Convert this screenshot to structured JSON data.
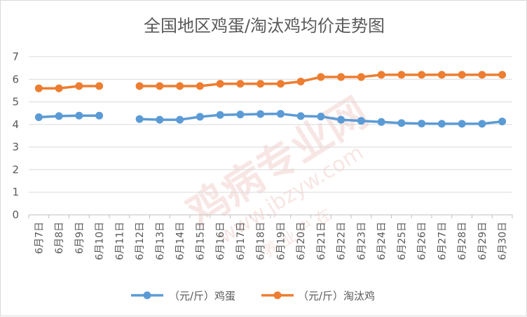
{
  "chart_data": {
    "type": "line",
    "title": "全国地区鸡蛋/淘汰鸡均价走势图",
    "categories": [
      "6月7日",
      "6月8日",
      "6月9日",
      "6月10日",
      "6月11日",
      "6月12日",
      "6月13日",
      "6月14日",
      "6月15日",
      "6月16日",
      "6月17日",
      "6月18日",
      "6月19日",
      "6月20日",
      "6月21日",
      "6月22日",
      "6月23日",
      "6月24日",
      "6月25日",
      "6月26日",
      "6月27日",
      "6月28日",
      "6月29日",
      "6月30日"
    ],
    "series": [
      {
        "name": "（元/斤）鸡蛋",
        "color": "#5b9bd5",
        "values": [
          4.32,
          4.37,
          4.39,
          4.39,
          null,
          4.24,
          4.21,
          4.21,
          4.34,
          4.42,
          4.44,
          4.46,
          4.47,
          4.37,
          4.35,
          4.21,
          4.16,
          4.11,
          4.06,
          4.04,
          4.03,
          4.03,
          4.03,
          4.13
        ]
      },
      {
        "name": "（元/斤）淘汰鸡",
        "color": "#ed7d31",
        "values": [
          5.6,
          5.6,
          5.7,
          5.7,
          null,
          5.7,
          5.7,
          5.7,
          5.7,
          5.8,
          5.8,
          5.8,
          5.8,
          5.9,
          6.1,
          6.1,
          6.1,
          6.2,
          6.2,
          6.2,
          6.2,
          6.2,
          6.2,
          6.2
        ]
      }
    ],
    "ylim": [
      0,
      7
    ],
    "yticks": [
      0,
      1,
      2,
      3,
      4,
      5,
      6,
      7
    ],
    "grid": true,
    "legend_position": "bottom"
  },
  "watermark": {
    "main": "鸡病专业网",
    "url": "www.jbzyw.com",
    "sub": "养 业 户 在"
  }
}
